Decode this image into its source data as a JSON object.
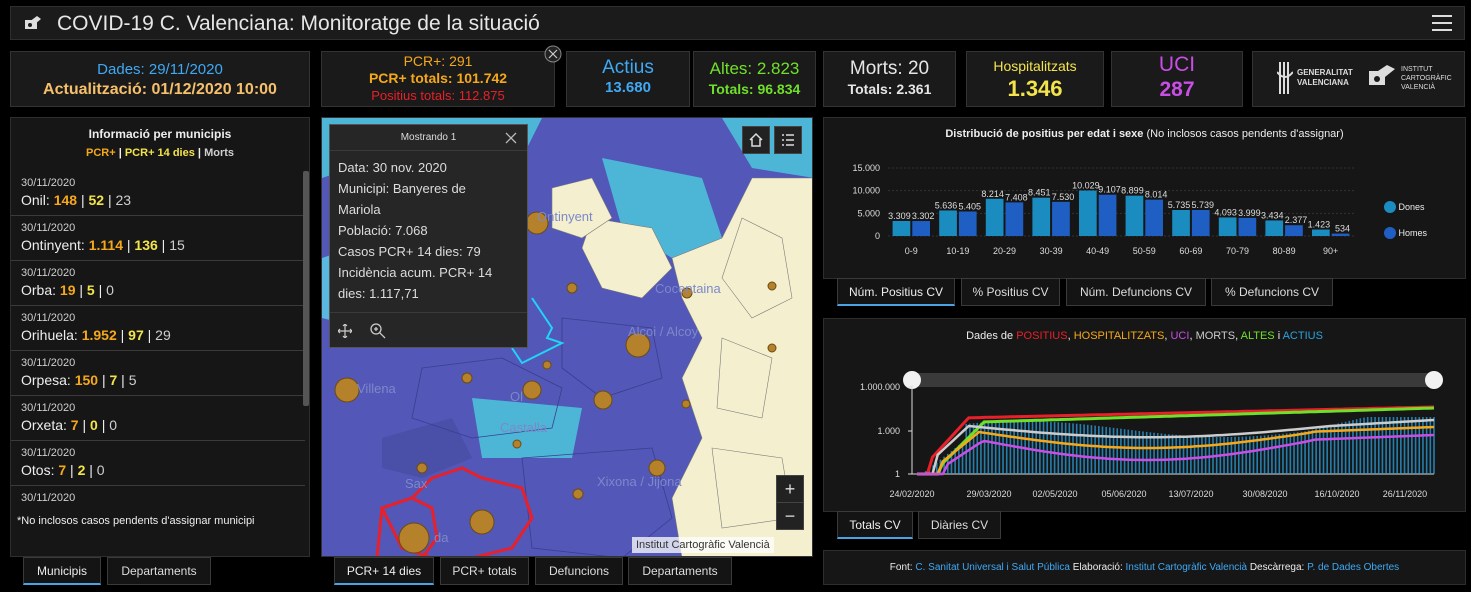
{
  "header": {
    "title": "COVID-19 C. Valenciana: Monitoratge de la situació"
  },
  "kpi": {
    "dades": "Dades: 29/11/2020",
    "actualitzacio": "Actualització: 01/12/2020 10:00",
    "pcr_today": "PCR+: 291",
    "pcr_totals": "PCR+ totals: 101.742",
    "positius_totals": "Positius totals: 112.875",
    "actius_label": "Actius",
    "actius_value": "13.680",
    "altes": "Altes: 2.823",
    "altes_totals": "Totals: 96.834",
    "morts": "Morts: 20",
    "morts_totals": "Totals: 2.361",
    "hosp_label": "Hospitalitzats",
    "hosp_value": "1.346",
    "uci_label": "UCI",
    "uci_value": "287",
    "logo_gva_1": "GENERALITAT",
    "logo_gva_2": "VALENCIANA",
    "logo_icv_1": "INSTITUT",
    "logo_icv_2": "CARTOGRÀFIC",
    "logo_icv_3": "VALENCIÀ"
  },
  "municipis": {
    "title": "Informació per municipis",
    "legend_pcr": "PCR+",
    "legend_sep1": "|",
    "legend_pcr14": "PCR+ 14 dies",
    "legend_sep2": "|",
    "legend_morts": "Morts",
    "items": [
      {
        "date": "30/11/2020",
        "name": "Onil:",
        "a": "148",
        "b": "52",
        "c": "23"
      },
      {
        "date": "30/11/2020",
        "name": "Ontinyent:",
        "a": "1.114",
        "b": "136",
        "c": "15"
      },
      {
        "date": "30/11/2020",
        "name": "Orba:",
        "a": "19",
        "b": "5",
        "c": "0"
      },
      {
        "date": "30/11/2020",
        "name": "Orihuela:",
        "a": "1.952",
        "b": "97",
        "c": "29"
      },
      {
        "date": "30/11/2020",
        "name": "Orpesa:",
        "a": "150",
        "b": "7",
        "c": "5"
      },
      {
        "date": "30/11/2020",
        "name": "Orxeta:",
        "a": "7",
        "b": "0",
        "c": "0"
      },
      {
        "date": "30/11/2020",
        "name": "Otos:",
        "a": "7",
        "b": "2",
        "c": "0"
      },
      {
        "date": "30/11/2020",
        "name": "",
        "a": "",
        "b": "",
        "c": ""
      }
    ],
    "footnote": "*No inclosos casos pendents d'assignar municipi"
  },
  "left_tabs": [
    "Municipis",
    "Departaments"
  ],
  "map": {
    "popup_title": "Mostrando 1",
    "popup_lines": [
      "Data: 30 nov. 2020",
      "Municipi: Banyeres de",
      "Mariola",
      "Població: 7.068",
      "Casos PCR+ 14 dies: 79",
      "Incidència acum. PCR+ 14",
      "dies: 1.117,71"
    ],
    "labels": [
      "Ontinyent",
      "Cocentaina",
      "Alcoi / Alcoy",
      "Villena",
      "Castalla",
      "Sax",
      "Xixona / Jijona",
      "Ol",
      "da"
    ],
    "attribution": "Institut Cartogràfic Valencià",
    "zoom_in": "+",
    "zoom_out": "−"
  },
  "map_tabs": [
    "PCR+ 14 dies",
    "PCR+ totals",
    "Defuncions",
    "Departaments"
  ],
  "age_chart": {
    "title_bold": "Distribució de positius per edat i sexe",
    "title_rest": " (No inclosos casos pendents d'assignar)",
    "chart_data": {
      "type": "bar",
      "categories": [
        "0-9",
        "10-19",
        "20-29",
        "30-39",
        "40-49",
        "50-59",
        "60-69",
        "70-79",
        "80-89",
        "90+"
      ],
      "series": [
        {
          "name": "Dones",
          "values": [
            3309,
            5636,
            8214,
            8451,
            10029,
            8899,
            5735,
            4093,
            3434,
            1423
          ],
          "labels": [
            "3.309",
            "5.636",
            "8.214",
            "8.451",
            "10.029",
            "8.899",
            "5.735",
            "4.093",
            "3.434",
            "1.423"
          ],
          "color": "#1a8cbf"
        },
        {
          "name": "Homes",
          "values": [
            3302,
            5405,
            7408,
            7530,
            9107,
            8014,
            5739,
            3999,
            2377,
            534
          ],
          "labels": [
            "3.302",
            "5.405",
            "7.408",
            "7.530",
            "9.107",
            "8.014",
            "5.739",
            "3.999",
            "2.377",
            "534"
          ],
          "color": "#1f5fc4"
        }
      ],
      "yticks": [
        "15.000",
        "10.000",
        "5.000",
        "0"
      ],
      "ylim": [
        0,
        15000
      ]
    }
  },
  "age_tabs": [
    "Núm. Positius CV",
    "% Positius CV",
    "Núm. Defuncions CV",
    "% Defuncions CV"
  ],
  "ts_chart": {
    "title_parts": [
      {
        "text": "Dades de ",
        "color": "#eeeeee"
      },
      {
        "text": "POSITIUS",
        "color": "#e8202a"
      },
      {
        "text": ", ",
        "color": "#eeeeee"
      },
      {
        "text": "HOSPITALITZATS",
        "color": "#f6a81b"
      },
      {
        "text": ", ",
        "color": "#eeeeee"
      },
      {
        "text": "UCI",
        "color": "#c94ee6"
      },
      {
        "text": ", ",
        "color": "#eeeeee"
      },
      {
        "text": "MORTS",
        "color": "#cccccc"
      },
      {
        "text": ", ",
        "color": "#eeeeee"
      },
      {
        "text": "ALTES",
        "color": "#6fe02a"
      },
      {
        "text": " i ",
        "color": "#eeeeee"
      },
      {
        "text": "ACTIUS",
        "color": "#2ba3df"
      }
    ],
    "chart_data": {
      "type": "line",
      "yscale": "log",
      "yticks": [
        "1.000.000",
        "1.000",
        "1"
      ],
      "xticks": [
        "24/02/2020",
        "29/03/2020",
        "02/05/2020",
        "05/06/2020",
        "13/07/2020",
        "30/08/2020",
        "16/10/2020",
        "26/11/2020"
      ],
      "series": [
        {
          "name": "POSITIUS",
          "color": "#e8202a"
        },
        {
          "name": "HOSPITALITZATS",
          "color": "#f6a81b"
        },
        {
          "name": "UCI",
          "color": "#c94ee6"
        },
        {
          "name": "MORTS",
          "color": "#cccccc"
        },
        {
          "name": "ALTES",
          "color": "#6fe02a"
        },
        {
          "name": "ACTIUS",
          "color": "#2ba3df"
        }
      ]
    }
  },
  "ts_tabs": [
    "Totals CV",
    "Diàries CV"
  ],
  "footer": {
    "font_label": "Font:",
    "font_value": "C. Sanitat Universal i Salut Pública",
    "elab_label": "Elaboració:",
    "elab_value": "Institut Cartogràfic Valencià",
    "desc_label": "Descàrrega:",
    "desc_value": "P. de Dades Obertes"
  }
}
